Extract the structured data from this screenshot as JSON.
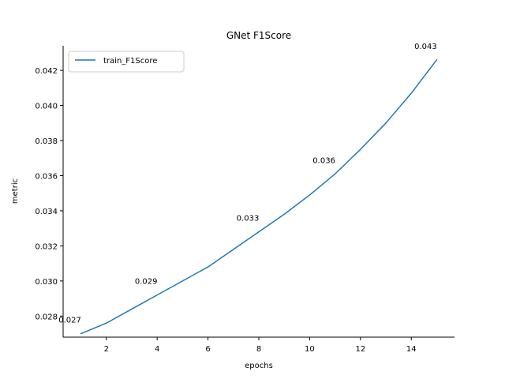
{
  "chart_data": {
    "type": "line",
    "title": "GNet F1Score",
    "xlabel": "epochs",
    "ylabel": "metric",
    "xlim": [
      0.3,
      15.7
    ],
    "ylim": [
      0.0268,
      0.0434
    ],
    "x_ticks": [
      2,
      4,
      6,
      8,
      10,
      12,
      14
    ],
    "y_ticks": [
      0.028,
      0.03,
      0.032,
      0.034,
      0.036,
      0.038,
      0.04,
      0.042
    ],
    "y_tick_labels": [
      "0.028",
      "0.030",
      "0.032",
      "0.034",
      "0.036",
      "0.038",
      "0.040",
      "0.042"
    ],
    "grid": false,
    "legend_position": "top-left",
    "series": [
      {
        "name": "train_F1Score",
        "color": "#1f77b4",
        "x": [
          1,
          2,
          3,
          4,
          5,
          6,
          7,
          8,
          9,
          10,
          11,
          12,
          13,
          14,
          15
        ],
        "values": [
          0.027,
          0.0276,
          0.0284,
          0.0292,
          0.03,
          0.0308,
          0.0318,
          0.0328,
          0.0338,
          0.0349,
          0.0361,
          0.0375,
          0.039,
          0.0407,
          0.0426
        ]
      }
    ],
    "annotations": [
      {
        "text": "0.027",
        "x": 1,
        "y": 0.027
      },
      {
        "text": "0.029",
        "x": 4,
        "y": 0.0292
      },
      {
        "text": "0.033",
        "x": 8,
        "y": 0.0328
      },
      {
        "text": "0.036",
        "x": 11,
        "y": 0.0361
      },
      {
        "text": "0.043",
        "x": 15,
        "y": 0.0426
      }
    ]
  }
}
